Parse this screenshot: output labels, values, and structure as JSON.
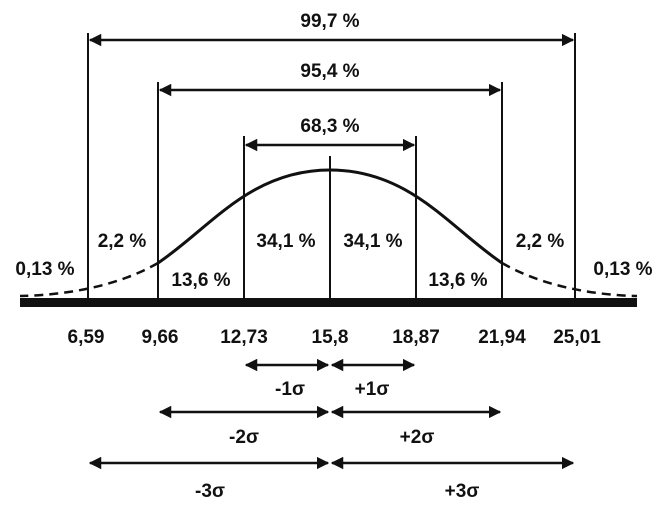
{
  "brackets": {
    "three_sigma": "99,7 %",
    "two_sigma": "95,4 %",
    "one_sigma": "68,3 %"
  },
  "areas": {
    "left_tail": "0,13 %",
    "left_3": "2,2 %",
    "left_2": "13,6 %",
    "left_1": "34,1 %",
    "right_1": "34,1 %",
    "right_2": "13,6 %",
    "right_3": "2,2 %",
    "right_tail": "0,13 %"
  },
  "axis_labels": [
    "6,59",
    "9,66",
    "12,73",
    "15,8",
    "18,87",
    "21,94",
    "25,01"
  ],
  "sigma_labels": {
    "minus_1": "-1σ",
    "plus_1": "+1σ",
    "minus_2": "-2σ",
    "plus_2": "+2σ",
    "minus_3": "-3σ",
    "plus_3": "+3σ"
  }
}
